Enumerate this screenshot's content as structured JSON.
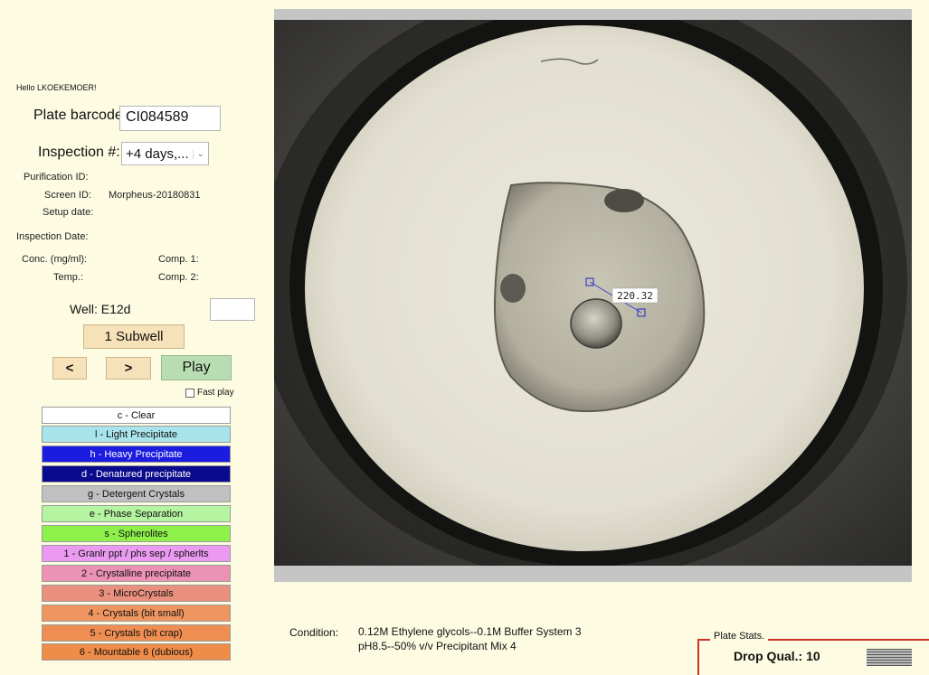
{
  "greeting": "Hello LKOEKEMOER!",
  "plate_barcode": {
    "label": "Plate barcode:",
    "value": "CI084589"
  },
  "inspection": {
    "label": "Inspection #:",
    "value": "+4 days,..."
  },
  "info": {
    "purification_label": "Purification ID:",
    "screen_label": "Screen ID:",
    "screen_value": "Morpheus-20180831",
    "setup_label": "Setup date:",
    "inspection_date_label": "Inspection Date:",
    "conc_label": "Conc. (mg/ml):",
    "comp1_label": "Comp. 1:",
    "temp_label": "Temp.:",
    "comp2_label": "Comp. 2:"
  },
  "well": {
    "label": "Well:",
    "value": "E12d"
  },
  "subwell_button": "1 Subwell",
  "nav": {
    "prev": "<",
    "next": ">",
    "play": "Play",
    "fast_play": "Fast play"
  },
  "categories": [
    {
      "label": "c - Clear",
      "color": "#ffffff",
      "text_color": "#111111"
    },
    {
      "label": "l - Light Precipitate",
      "color": "#a9e4ec",
      "text_color": "#111111"
    },
    {
      "label": "h - Heavy Precipitate",
      "color": "#1c1ce0",
      "text_color": "#ffffff"
    },
    {
      "label": "d - Denatured precipitate",
      "color": "#0a0a8c",
      "text_color": "#ffffff"
    },
    {
      "label": "g - Detergent Crystals",
      "color": "#c0c0c0",
      "text_color": "#111111"
    },
    {
      "label": "e - Phase Separation",
      "color": "#b5f5a1",
      "text_color": "#111111"
    },
    {
      "label": "s - Spherolites",
      "color": "#8ef14a",
      "text_color": "#111111"
    },
    {
      "label": "1 - Granlr ppt / phs sep / spherlts",
      "color": "#ea9af0",
      "text_color": "#111111"
    },
    {
      "label": "2 - Crystalline precipitate",
      "color": "#ec92b4",
      "text_color": "#111111"
    },
    {
      "label": "3 - MicroCrystals",
      "color": "#e9907e",
      "text_color": "#111111"
    },
    {
      "label": "4 - Crystals (bit small)",
      "color": "#ef9660",
      "text_color": "#111111"
    },
    {
      "label": "5 - Crystals (bit crap)",
      "color": "#ee8e52",
      "text_color": "#111111"
    },
    {
      "label": "6 - Mountable 6 (dubious)",
      "color": "#ef8c48",
      "text_color": "#111111"
    }
  ],
  "measurement": "220.32",
  "condition": {
    "label": "Condition:",
    "line1": "0.12M Ethylene glycols--0.1M Buffer System 3",
    "line2": "pH8.5--50% v/v Precipitant Mix 4"
  },
  "plate_stats": {
    "label": "Plate Stats.",
    "drop_qual": "Drop Qual.: 10"
  }
}
